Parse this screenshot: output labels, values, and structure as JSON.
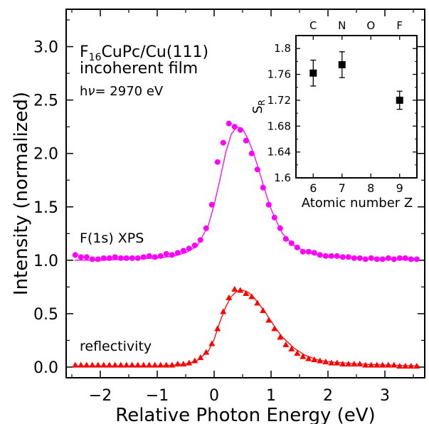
{
  "chart_data": [
    {
      "type": "scatter",
      "xlabel": "Relative Photon Energy (eV)",
      "ylabel": "Intensity (normalized)",
      "xlim": [
        -2.6,
        3.7
      ],
      "ylim": [
        -0.1,
        3.35
      ],
      "xticks": [
        -2,
        -1,
        0,
        1,
        2,
        3
      ],
      "yticks": [
        0.0,
        0.5,
        1.0,
        1.5,
        2.0,
        2.5,
        3.0
      ],
      "annotations": {
        "sample_formula": "F",
        "sample_sub": "16",
        "sample_rest": "CuPc/Cu(111)",
        "film": "incoherent film",
        "energy_prefix": "h",
        "energy_nu": "ν",
        "energy_value": "= 2970 eV",
        "xps_label": "F(1s) XPS",
        "refl_label": "reflectivity"
      },
      "series": [
        {
          "name": "F(1s) XPS",
          "color": "#ff00ff",
          "marker": "circle",
          "x": [
            -2.44,
            -2.34,
            -2.24,
            -2.14,
            -2.04,
            -1.94,
            -1.84,
            -1.74,
            -1.64,
            -1.54,
            -1.44,
            -1.34,
            -1.24,
            -1.14,
            -1.04,
            -0.94,
            -0.84,
            -0.74,
            -0.64,
            -0.54,
            -0.44,
            -0.34,
            -0.24,
            -0.14,
            -0.04,
            0.06,
            0.16,
            0.26,
            0.36,
            0.46,
            0.56,
            0.66,
            0.76,
            0.86,
            0.96,
            1.06,
            1.16,
            1.26,
            1.36,
            1.46,
            1.56,
            1.66,
            1.76,
            1.86,
            1.96,
            2.06,
            2.16,
            2.26,
            2.36,
            2.46,
            2.56,
            2.66,
            2.76,
            2.86,
            2.96,
            3.06,
            3.16,
            3.26,
            3.36,
            3.46,
            3.56
          ],
          "y": [
            1.05,
            1.03,
            1.03,
            1.01,
            1.01,
            1.02,
            1.02,
            1.03,
            1.02,
            1.02,
            1.02,
            1.02,
            1.03,
            1.04,
            1.03,
            1.04,
            1.06,
            1.05,
            1.07,
            1.09,
            1.11,
            1.14,
            1.19,
            1.3,
            1.52,
            1.92,
            2.1,
            2.28,
            2.25,
            2.22,
            2.12,
            2.0,
            1.85,
            1.68,
            1.52,
            1.4,
            1.3,
            1.2,
            1.16,
            1.12,
            1.08,
            1.08,
            1.07,
            1.05,
            1.04,
            1.04,
            1.04,
            1.03,
            1.03,
            1.02,
            1.02,
            1.01,
            1.02,
            1.01,
            1.01,
            1.02,
            1.01,
            1.02,
            1.02,
            1.01,
            1.01
          ]
        },
        {
          "name": "reflectivity",
          "color": "#ff0000",
          "marker": "triangle",
          "x": [
            -2.44,
            -2.34,
            -2.24,
            -2.14,
            -2.04,
            -1.94,
            -1.84,
            -1.74,
            -1.64,
            -1.54,
            -1.44,
            -1.34,
            -1.24,
            -1.14,
            -1.04,
            -0.94,
            -0.84,
            -0.74,
            -0.64,
            -0.54,
            -0.44,
            -0.34,
            -0.24,
            -0.14,
            -0.04,
            0.06,
            0.16,
            0.26,
            0.36,
            0.46,
            0.56,
            0.66,
            0.76,
            0.86,
            0.96,
            1.06,
            1.16,
            1.26,
            1.36,
            1.46,
            1.56,
            1.66,
            1.76,
            1.86,
            1.96,
            2.06,
            2.16,
            2.26,
            2.36,
            2.46,
            2.56,
            2.66,
            2.76,
            2.86,
            2.96,
            3.06,
            3.16,
            3.26,
            3.36,
            3.46,
            3.56
          ],
          "y": [
            0.02,
            0.02,
            0.02,
            0.02,
            0.02,
            0.02,
            0.02,
            0.02,
            0.02,
            0.02,
            0.02,
            0.02,
            0.02,
            0.02,
            0.02,
            0.02,
            0.02,
            0.02,
            0.03,
            0.03,
            0.04,
            0.06,
            0.09,
            0.14,
            0.22,
            0.36,
            0.52,
            0.65,
            0.73,
            0.72,
            0.69,
            0.66,
            0.6,
            0.53,
            0.44,
            0.36,
            0.28,
            0.21,
            0.17,
            0.13,
            0.1,
            0.08,
            0.07,
            0.06,
            0.05,
            0.04,
            0.04,
            0.03,
            0.03,
            0.03,
            0.03,
            0.02,
            0.02,
            0.02,
            0.02,
            0.02,
            0.02,
            0.01,
            0.01,
            0.01,
            0.01
          ]
        }
      ],
      "fits": [
        {
          "color": "#ff00ff",
          "x": [
            -2.45,
            -2.0,
            -1.5,
            -1.0,
            -0.7,
            -0.5,
            -0.3,
            -0.1,
            0.0,
            0.1,
            0.2,
            0.3,
            0.4,
            0.5,
            0.6,
            0.7,
            0.8,
            0.9,
            1.0,
            1.1,
            1.2,
            1.4,
            1.6,
            1.8,
            2.0,
            2.5,
            3.0,
            3.6
          ],
          "y": [
            1.0,
            1.0,
            1.01,
            1.02,
            1.04,
            1.07,
            1.13,
            1.33,
            1.52,
            1.75,
            2.0,
            2.18,
            2.25,
            2.23,
            2.13,
            1.99,
            1.82,
            1.64,
            1.48,
            1.36,
            1.25,
            1.14,
            1.08,
            1.05,
            1.03,
            1.02,
            1.01,
            1.0
          ]
        },
        {
          "color": "#ff0000",
          "x": [
            -2.45,
            -2.0,
            -1.5,
            -1.0,
            -0.7,
            -0.5,
            -0.3,
            -0.1,
            0.0,
            0.1,
            0.2,
            0.3,
            0.4,
            0.5,
            0.6,
            0.7,
            0.8,
            0.9,
            1.0,
            1.1,
            1.2,
            1.4,
            1.6,
            1.8,
            2.0,
            2.5,
            3.0,
            3.6
          ],
          "y": [
            0.01,
            0.01,
            0.01,
            0.01,
            0.02,
            0.03,
            0.06,
            0.15,
            0.26,
            0.42,
            0.56,
            0.66,
            0.71,
            0.72,
            0.7,
            0.65,
            0.58,
            0.51,
            0.43,
            0.35,
            0.28,
            0.18,
            0.11,
            0.07,
            0.05,
            0.03,
            0.02,
            0.01
          ]
        }
      ]
    },
    {
      "type": "scatter",
      "xlabel": "Atomic number Z",
      "ylabel": "S",
      "ylabel_sub": "R",
      "xlim": [
        5.4,
        9.6
      ],
      "ylim": [
        1.6,
        1.82
      ],
      "xticks": [
        6,
        7,
        8,
        9
      ],
      "yticks": [
        1.6,
        1.64,
        1.68,
        1.72,
        1.76,
        1.8
      ],
      "ytick_labels": [
        "1.6",
        "1.64",
        "1.68",
        "1.72",
        "1.76",
        "1.8"
      ],
      "top_tick_labels": [
        "C",
        "N",
        "O",
        "F"
      ],
      "series": [
        {
          "marker": "square",
          "color": "#000000",
          "x": [
            6,
            7,
            9
          ],
          "y": [
            1.762,
            1.775,
            1.72
          ],
          "err": [
            0.02,
            0.02,
            0.014
          ]
        }
      ]
    }
  ]
}
